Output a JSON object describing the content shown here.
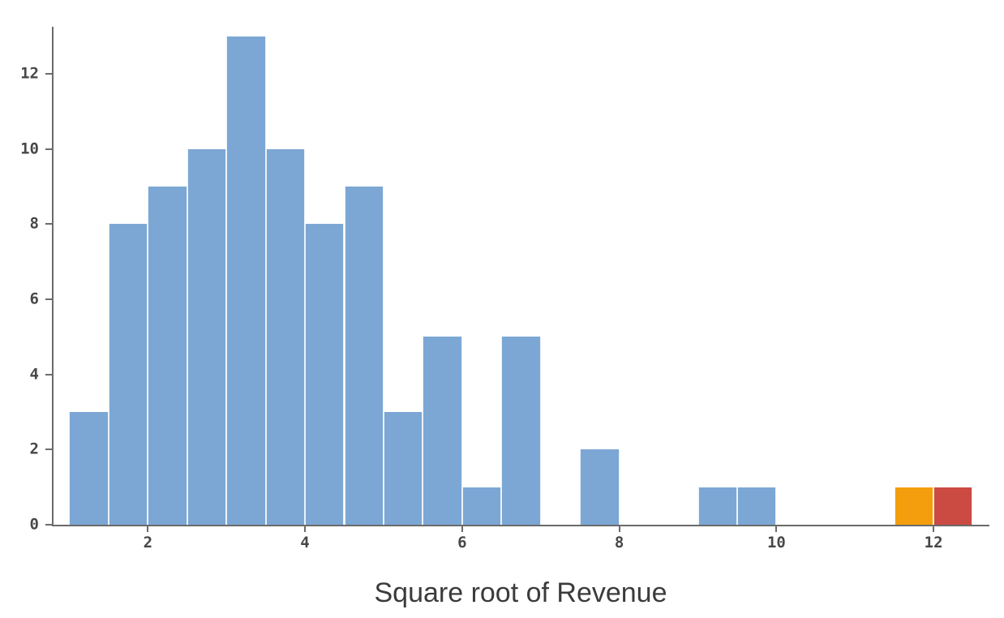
{
  "chart_data": {
    "type": "bar",
    "subtype": "histogram",
    "title": "",
    "xlabel": "Square root of Revenue",
    "ylabel": "",
    "grid": false,
    "legend": false,
    "bin_width": 0.5,
    "bins": [
      {
        "x0": 1.0,
        "x1": 1.5,
        "count": 3
      },
      {
        "x0": 1.5,
        "x1": 2.0,
        "count": 8
      },
      {
        "x0": 2.0,
        "x1": 2.5,
        "count": 9
      },
      {
        "x0": 2.5,
        "x1": 3.0,
        "count": 10
      },
      {
        "x0": 3.0,
        "x1": 3.5,
        "count": 13
      },
      {
        "x0": 3.5,
        "x1": 4.0,
        "count": 10
      },
      {
        "x0": 4.0,
        "x1": 4.5,
        "count": 8
      },
      {
        "x0": 4.5,
        "x1": 5.0,
        "count": 9
      },
      {
        "x0": 5.0,
        "x1": 5.5,
        "count": 3
      },
      {
        "x0": 5.5,
        "x1": 6.0,
        "count": 5
      },
      {
        "x0": 6.0,
        "x1": 6.5,
        "count": 1
      },
      {
        "x0": 6.5,
        "x1": 7.0,
        "count": 5
      },
      {
        "x0": 7.0,
        "x1": 7.5,
        "count": 0
      },
      {
        "x0": 7.5,
        "x1": 8.0,
        "count": 2
      },
      {
        "x0": 8.0,
        "x1": 8.5,
        "count": 0
      },
      {
        "x0": 8.5,
        "x1": 9.0,
        "count": 0
      },
      {
        "x0": 9.0,
        "x1": 9.5,
        "count": 1
      },
      {
        "x0": 9.5,
        "x1": 10.0,
        "count": 1
      },
      {
        "x0": 10.0,
        "x1": 10.5,
        "count": 0
      },
      {
        "x0": 10.5,
        "x1": 11.0,
        "count": 0
      },
      {
        "x0": 11.0,
        "x1": 11.5,
        "count": 0
      },
      {
        "x0": 11.5,
        "x1": 12.0,
        "count": 1,
        "color": "#F49E0D"
      },
      {
        "x0": 12.0,
        "x1": 12.5,
        "count": 1,
        "color": "#CB4A42"
      }
    ],
    "x_ticks": [
      2,
      4,
      6,
      8,
      10,
      12
    ],
    "y_ticks": [
      0,
      2,
      4,
      6,
      8,
      10,
      12
    ],
    "xlim": [
      0.8,
      12.69
    ],
    "ylim": [
      0,
      13.25
    ],
    "colors": {
      "bar_default": "#7CA7D4",
      "bar_highlight_orange": "#F49E0D",
      "bar_highlight_red": "#CB4A42",
      "axis": "#6B6B6B",
      "tick_label": "#474747",
      "axis_label": "#3B3B3B"
    }
  }
}
